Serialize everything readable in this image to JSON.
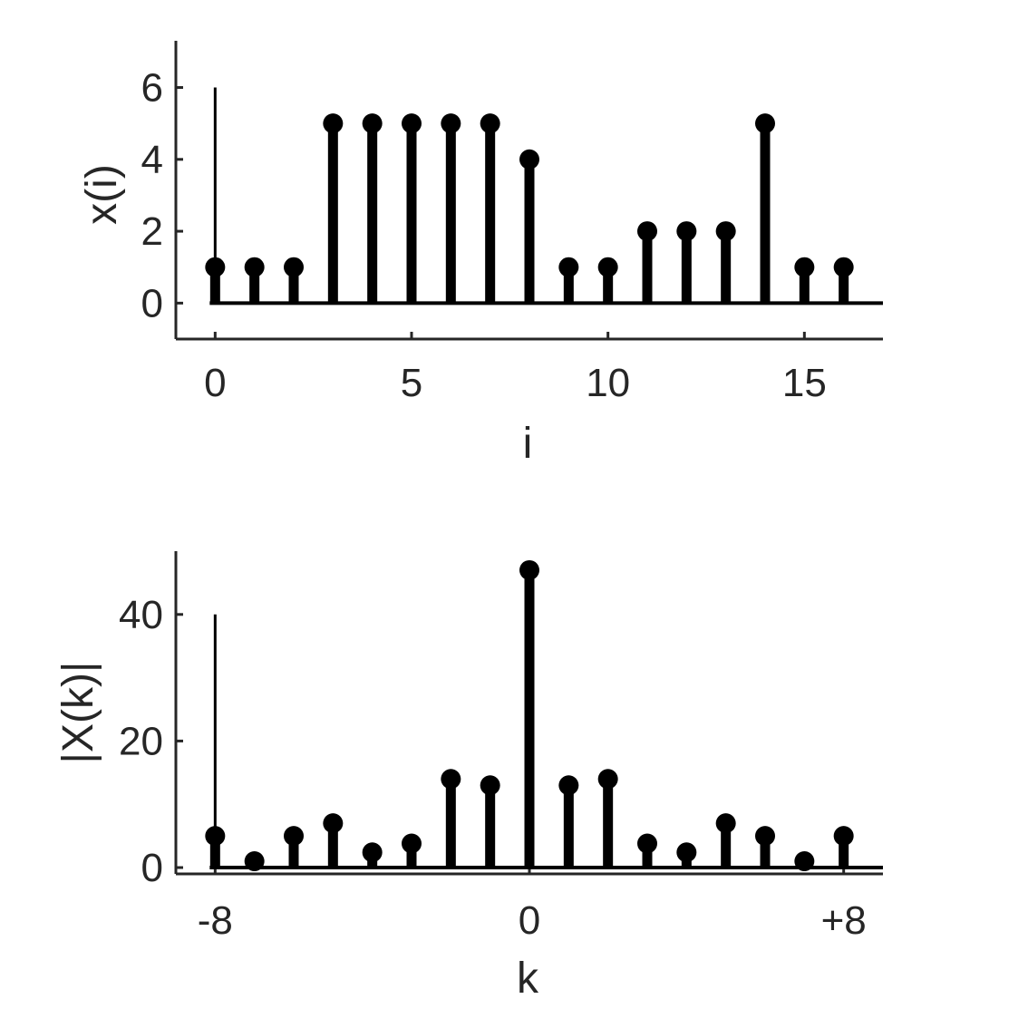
{
  "chart_data": [
    {
      "type": "stem",
      "xlabel": "i",
      "ylabel": "x(i)",
      "xlim": [
        -1,
        17
      ],
      "ylim": [
        -1,
        7.3
      ],
      "xticks": [
        0,
        5,
        10,
        15
      ],
      "xtick_labels": [
        "0",
        "5",
        "10",
        "15"
      ],
      "yticks": [
        0,
        2,
        4,
        6
      ],
      "ytick_labels": [
        "0",
        "2",
        "4",
        "6"
      ],
      "x": [
        0,
        1,
        2,
        3,
        4,
        5,
        6,
        7,
        8,
        9,
        10,
        11,
        12,
        13,
        14,
        15,
        16
      ],
      "values": [
        1,
        1,
        1,
        5,
        5,
        5,
        5,
        5,
        4,
        1,
        1,
        2,
        2,
        2,
        5,
        1,
        1
      ],
      "baseline": 0,
      "annotation_line": {
        "x": 0,
        "y": 6
      },
      "grid": false,
      "color": "#000000"
    },
    {
      "type": "stem",
      "xlabel": "k",
      "ylabel": "|X(k)|",
      "xlim": [
        -9,
        9
      ],
      "ylim": [
        -1,
        50
      ],
      "xticks": [
        -8,
        0,
        8
      ],
      "xtick_labels": [
        "-8",
        "0",
        "+8"
      ],
      "yticks": [
        0,
        20,
        40
      ],
      "ytick_labels": [
        "0",
        "20",
        "40"
      ],
      "x": [
        -8,
        -7,
        -6,
        -5,
        -4,
        -3,
        -2,
        -1,
        0,
        1,
        2,
        3,
        4,
        5,
        6,
        7,
        8
      ],
      "values": [
        5,
        1,
        5,
        7,
        2.4,
        3.8,
        14,
        13,
        47,
        13,
        14,
        3.8,
        2.4,
        7,
        5,
        1,
        5
      ],
      "baseline": 0,
      "annotation_line": {
        "x": -8,
        "y": 40
      },
      "grid": false,
      "color": "#000000"
    }
  ]
}
